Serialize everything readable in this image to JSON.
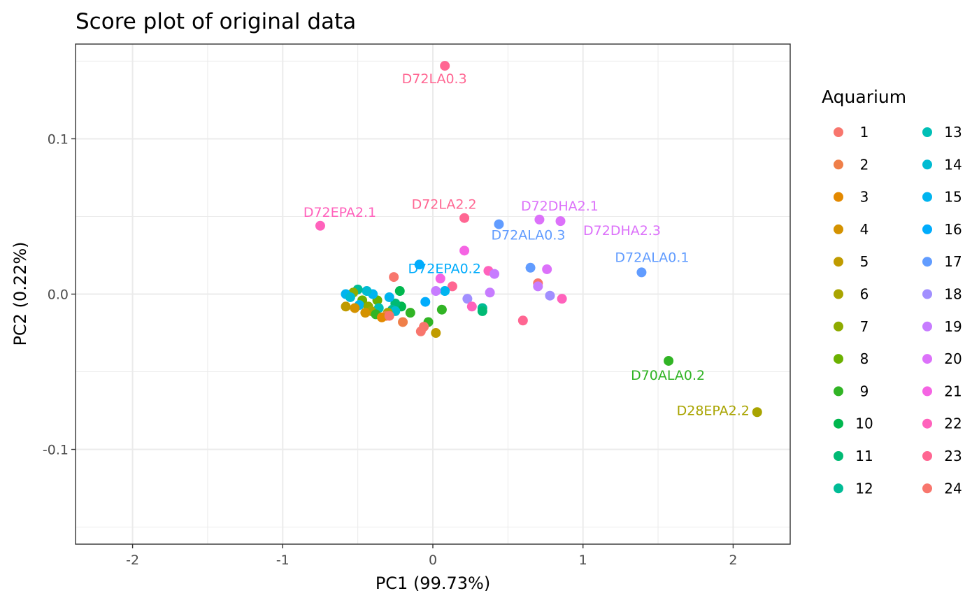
{
  "chart_data": {
    "type": "scatter",
    "title": "Score plot of original data",
    "xlabel": "PC1 (99.73%)",
    "ylabel": "PC2 (0.22%)",
    "xlim": [
      -2.38,
      2.38
    ],
    "ylim": [
      -0.161,
      0.161
    ],
    "xticks": [
      -2,
      -1,
      0,
      1,
      2
    ],
    "xtick_labels": [
      "-2",
      "-1",
      "0",
      "1",
      "2"
    ],
    "yticks": [
      -0.1,
      0.0,
      0.1
    ],
    "ytick_labels": [
      "-0.1",
      "0.0",
      "0.1"
    ],
    "grid": true,
    "legend": {
      "title": "Aquarium",
      "placement": "right",
      "entries": [
        "1",
        "2",
        "3",
        "4",
        "5",
        "6",
        "7",
        "8",
        "9",
        "10",
        "11",
        "12",
        "13",
        "14",
        "15",
        "16",
        "17",
        "18",
        "19",
        "20",
        "21",
        "22",
        "23",
        "24"
      ],
      "colors": [
        "#F8766D",
        "#EF7F49",
        "#E38900",
        "#D49200",
        "#C09B00",
        "#A9A400",
        "#8EAB00",
        "#6BB100",
        "#31B425",
        "#00B74E",
        "#00BA74",
        "#00BC96",
        "#00BFB6",
        "#00BBD2",
        "#00B4EF",
        "#00ACFC",
        "#619CFF",
        "#A18FFF",
        "#C77CFF",
        "#DC71FA",
        "#F564E3",
        "#FF62BC",
        "#FF6692",
        "#F8766D"
      ]
    },
    "points": [
      {
        "x": 0.08,
        "y": 0.147,
        "group": "23",
        "label": "D72LA0.3"
      },
      {
        "x": -0.75,
        "y": 0.044,
        "group": "22",
        "label": "D72EPA2.1"
      },
      {
        "x": 0.21,
        "y": 0.049,
        "group": "23",
        "label": "D72LA2.2"
      },
      {
        "x": 0.71,
        "y": 0.048,
        "group": "20",
        "label": "D72DHA2.1"
      },
      {
        "x": 0.85,
        "y": 0.047,
        "group": "20",
        "label": "D72DHA2.3"
      },
      {
        "x": 0.44,
        "y": 0.045,
        "group": "17",
        "label": "D72ALA0.3"
      },
      {
        "x": 0.21,
        "y": 0.028,
        "group": "21",
        "label": ""
      },
      {
        "x": -0.09,
        "y": 0.019,
        "group": "16",
        "label": "D72EPA0.2"
      },
      {
        "x": 1.39,
        "y": 0.014,
        "group": "17",
        "label": "D72ALA0.1"
      },
      {
        "x": 0.65,
        "y": 0.017,
        "group": "17",
        "label": ""
      },
      {
        "x": 0.76,
        "y": 0.016,
        "group": "20",
        "label": ""
      },
      {
        "x": 0.37,
        "y": 0.015,
        "group": "22",
        "label": ""
      },
      {
        "x": 0.41,
        "y": 0.013,
        "group": "19",
        "label": ""
      },
      {
        "x": -0.26,
        "y": 0.011,
        "group": "24",
        "label": ""
      },
      {
        "x": 0.05,
        "y": 0.01,
        "group": "21",
        "label": ""
      },
      {
        "x": 0.7,
        "y": 0.007,
        "group": "1",
        "label": ""
      },
      {
        "x": 0.7,
        "y": 0.005,
        "group": "19",
        "label": ""
      },
      {
        "x": 0.13,
        "y": 0.005,
        "group": "23",
        "label": ""
      },
      {
        "x": 0.08,
        "y": 0.002,
        "group": "15",
        "label": ""
      },
      {
        "x": 0.02,
        "y": 0.002,
        "group": "19",
        "label": ""
      },
      {
        "x": 0.38,
        "y": 0.001,
        "group": "19",
        "label": ""
      },
      {
        "x": -0.22,
        "y": 0.002,
        "group": "10",
        "label": ""
      },
      {
        "x": 0.78,
        "y": -0.001,
        "group": "18",
        "label": ""
      },
      {
        "x": 0.86,
        "y": -0.003,
        "group": "22",
        "label": ""
      },
      {
        "x": 0.23,
        "y": -0.003,
        "group": "18",
        "label": ""
      },
      {
        "x": 0.26,
        "y": -0.008,
        "group": "22",
        "label": ""
      },
      {
        "x": -0.05,
        "y": -0.005,
        "group": "16",
        "label": ""
      },
      {
        "x": 0.33,
        "y": -0.009,
        "group": "12",
        "label": ""
      },
      {
        "x": 0.33,
        "y": -0.011,
        "group": "11",
        "label": ""
      },
      {
        "x": 0.06,
        "y": -0.01,
        "group": "9",
        "label": ""
      },
      {
        "x": -0.15,
        "y": -0.012,
        "group": "9",
        "label": ""
      },
      {
        "x": -0.21,
        "y": -0.008,
        "group": "10",
        "label": ""
      },
      {
        "x": -0.25,
        "y": -0.006,
        "group": "11",
        "label": ""
      },
      {
        "x": -0.03,
        "y": -0.018,
        "group": "9",
        "label": ""
      },
      {
        "x": -0.2,
        "y": -0.018,
        "group": "2",
        "label": ""
      },
      {
        "x": 0.6,
        "y": -0.017,
        "group": "23",
        "label": ""
      },
      {
        "x": -0.06,
        "y": -0.021,
        "group": "1",
        "label": ""
      },
      {
        "x": -0.08,
        "y": -0.024,
        "group": "1",
        "label": ""
      },
      {
        "x": 0.02,
        "y": -0.025,
        "group": "5",
        "label": ""
      },
      {
        "x": -0.29,
        "y": -0.002,
        "group": "15",
        "label": ""
      },
      {
        "x": -0.37,
        "y": -0.004,
        "group": "8",
        "label": ""
      },
      {
        "x": -0.4,
        "y": 0.0,
        "group": "15",
        "label": ""
      },
      {
        "x": -0.44,
        "y": 0.002,
        "group": "14",
        "label": ""
      },
      {
        "x": -0.5,
        "y": 0.003,
        "group": "12",
        "label": ""
      },
      {
        "x": -0.53,
        "y": 0.001,
        "group": "7",
        "label": ""
      },
      {
        "x": -0.58,
        "y": 0.0,
        "group": "15",
        "label": ""
      },
      {
        "x": -0.55,
        "y": -0.002,
        "group": "14",
        "label": ""
      },
      {
        "x": -0.47,
        "y": -0.004,
        "group": "8",
        "label": ""
      },
      {
        "x": -0.49,
        "y": -0.007,
        "group": "15",
        "label": ""
      },
      {
        "x": -0.43,
        "y": -0.008,
        "group": "7",
        "label": ""
      },
      {
        "x": -0.58,
        "y": -0.008,
        "group": "5",
        "label": ""
      },
      {
        "x": -0.52,
        "y": -0.009,
        "group": "4",
        "label": ""
      },
      {
        "x": -0.36,
        "y": -0.009,
        "group": "13",
        "label": ""
      },
      {
        "x": -0.27,
        "y": -0.01,
        "group": "12",
        "label": ""
      },
      {
        "x": -0.25,
        "y": -0.011,
        "group": "14",
        "label": ""
      },
      {
        "x": -0.41,
        "y": -0.011,
        "group": "6",
        "label": ""
      },
      {
        "x": -0.45,
        "y": -0.012,
        "group": "4",
        "label": ""
      },
      {
        "x": -0.38,
        "y": -0.013,
        "group": "9",
        "label": ""
      },
      {
        "x": -0.3,
        "y": -0.012,
        "group": "6",
        "label": ""
      },
      {
        "x": -0.31,
        "y": -0.014,
        "group": "2",
        "label": ""
      },
      {
        "x": -0.34,
        "y": -0.015,
        "group": "3",
        "label": ""
      },
      {
        "x": -0.29,
        "y": -0.014,
        "group": "24",
        "label": ""
      },
      {
        "x": 1.57,
        "y": -0.043,
        "group": "9",
        "label": "D70ALA0.2"
      },
      {
        "x": 2.16,
        "y": -0.076,
        "group": "6",
        "label": "D28EPA2.2"
      }
    ]
  }
}
